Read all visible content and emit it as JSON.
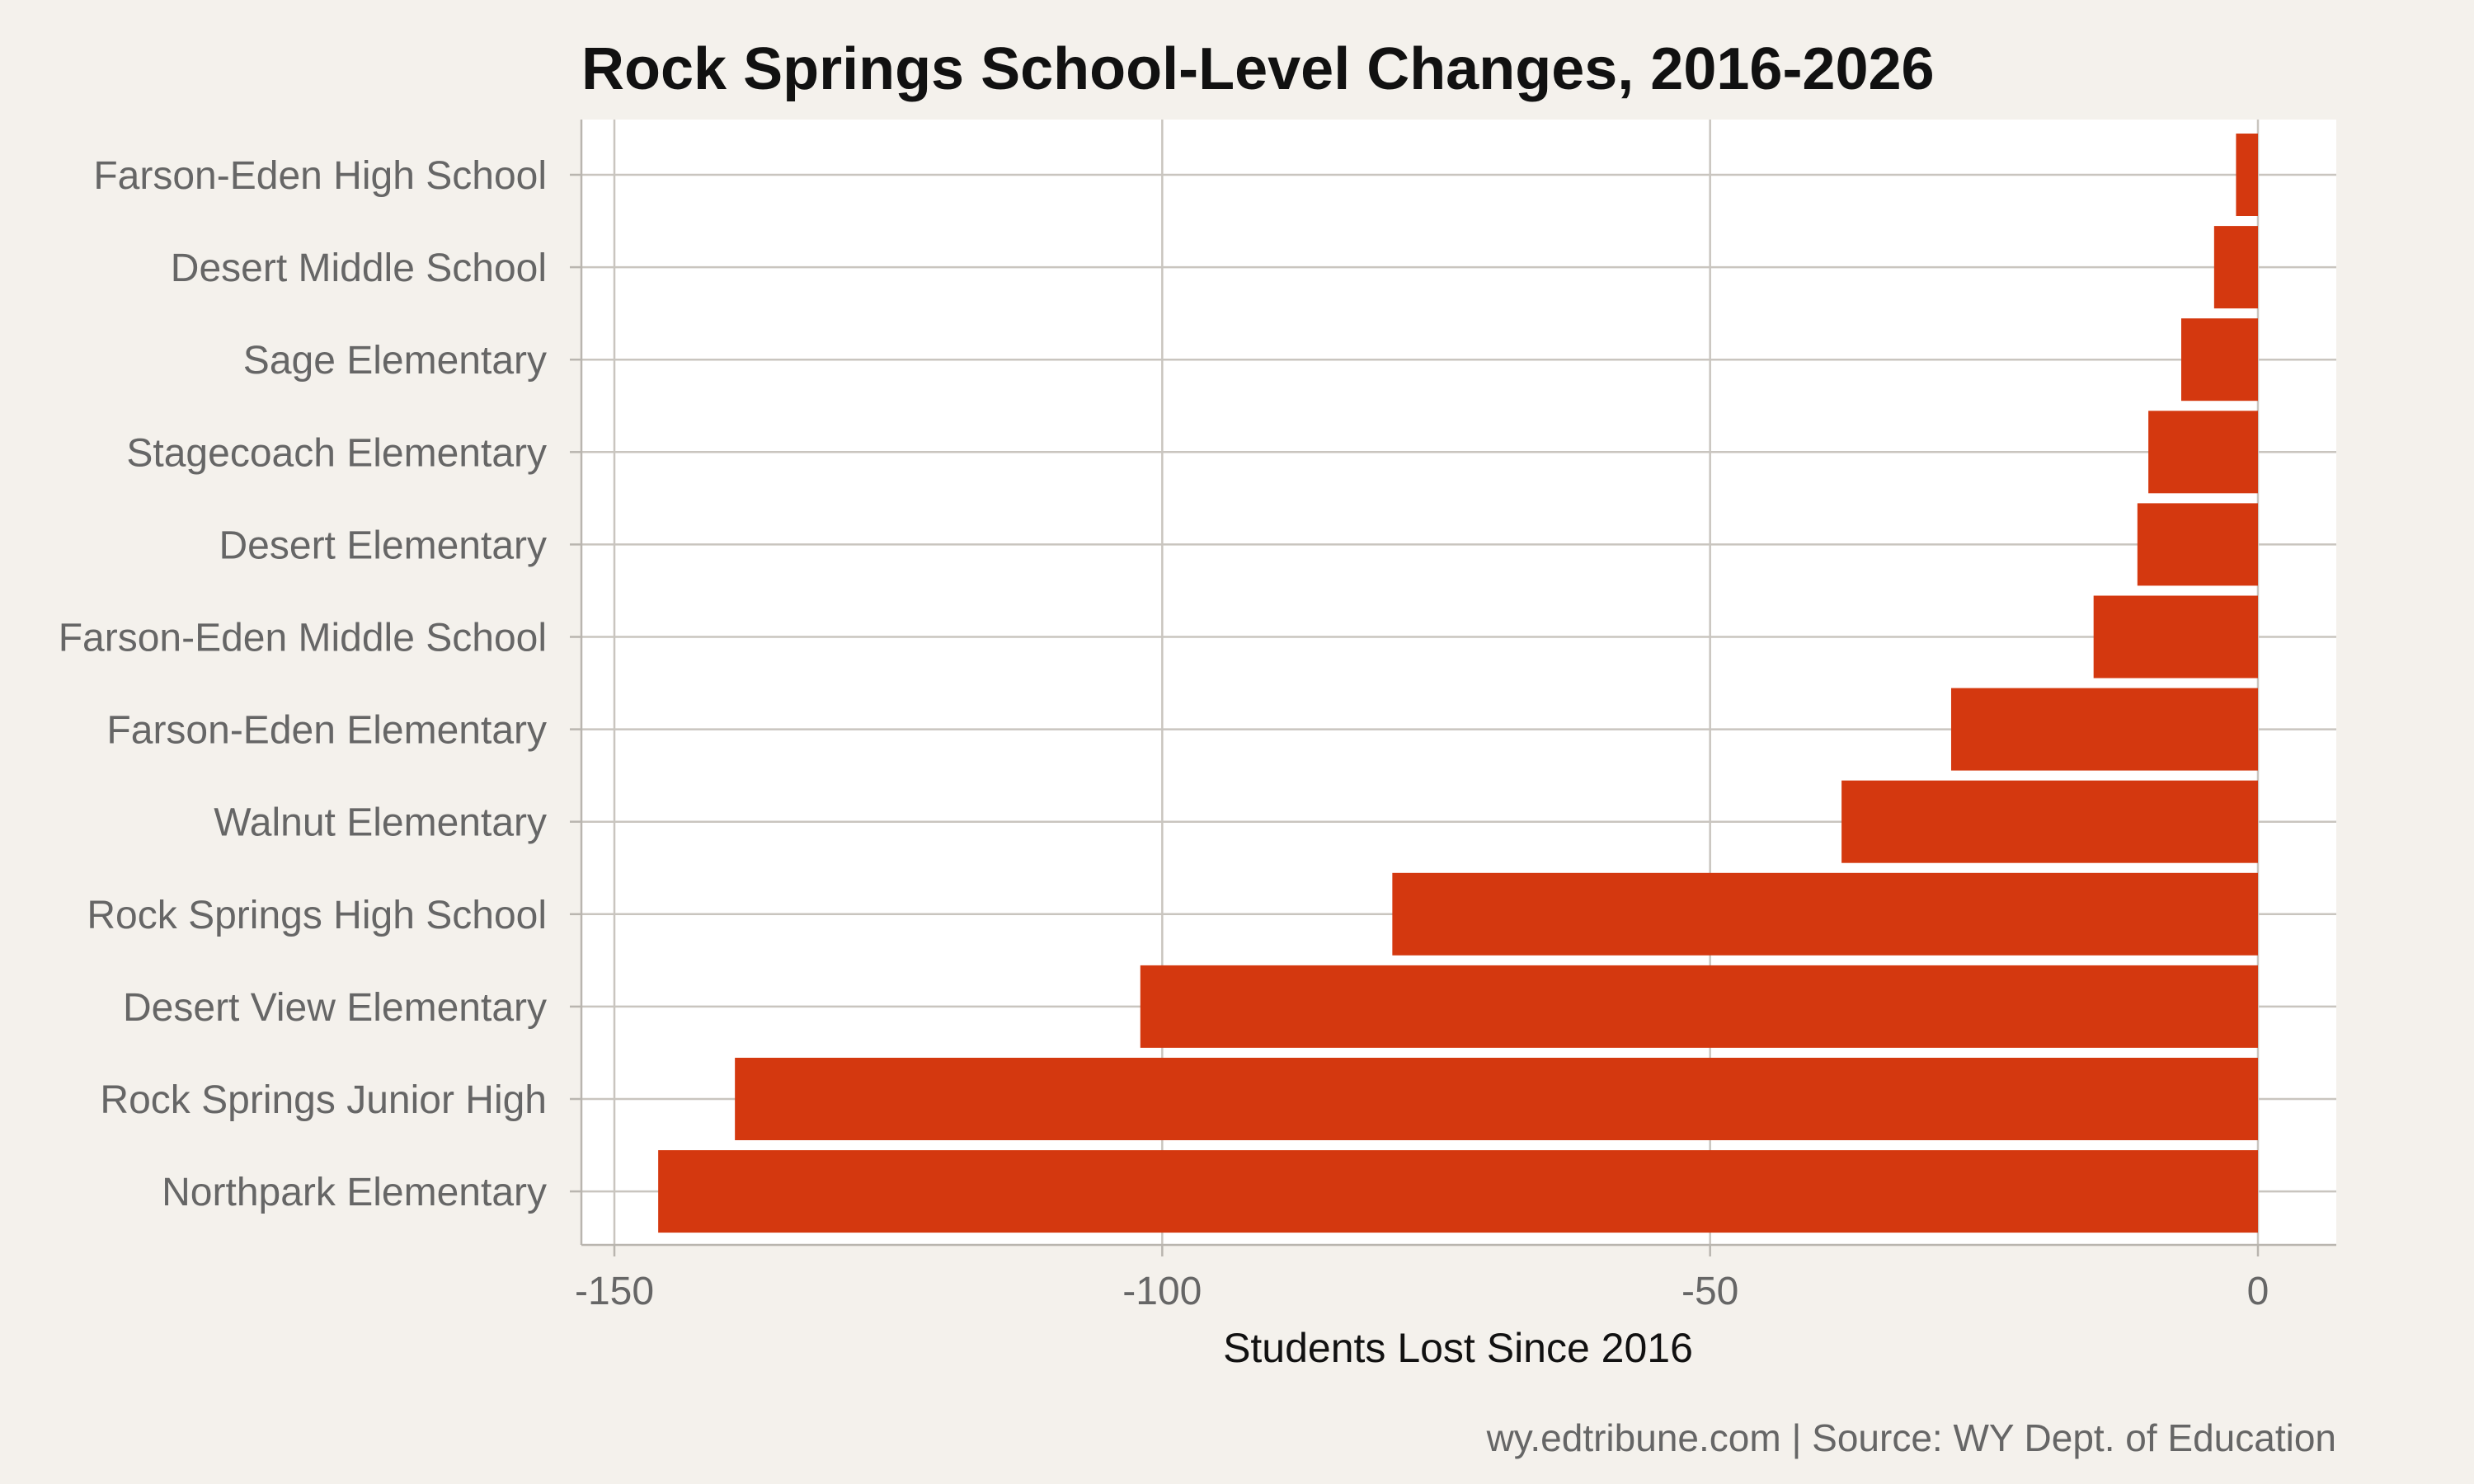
{
  "chart_data": {
    "type": "bar",
    "orientation": "horizontal",
    "title": "Rock Springs School-Level Changes, 2016-2026",
    "xlabel": "Students Lost Since 2016",
    "ylabel": "",
    "caption": "wy.edtribune.com | Source: WY Dept. of Education",
    "xlim": [
      -150,
      0
    ],
    "xticks": [
      -150,
      -100,
      -50,
      0
    ],
    "xtick_labels": [
      "-150",
      "-100",
      "-50",
      "0"
    ],
    "grid": true,
    "categories": [
      "Farson-Eden High School",
      "Desert Middle School",
      "Sage Elementary",
      "Stagecoach Elementary",
      "Desert Elementary",
      "Farson-Eden Middle School",
      "Farson-Eden Elementary",
      "Walnut Elementary",
      "Rock Springs High School",
      "Desert View Elementary",
      "Rock Springs Junior High",
      "Northpark Elementary"
    ],
    "values": [
      -2,
      -4,
      -7,
      -10,
      -11,
      -15,
      -28,
      -38,
      -79,
      -102,
      -139,
      -146
    ],
    "bar_color": "#d4380f"
  },
  "colors": {
    "background": "#f4f1ec",
    "panel": "#ffffff",
    "bar": "#d4380f",
    "grid": "#c9c5bf"
  }
}
